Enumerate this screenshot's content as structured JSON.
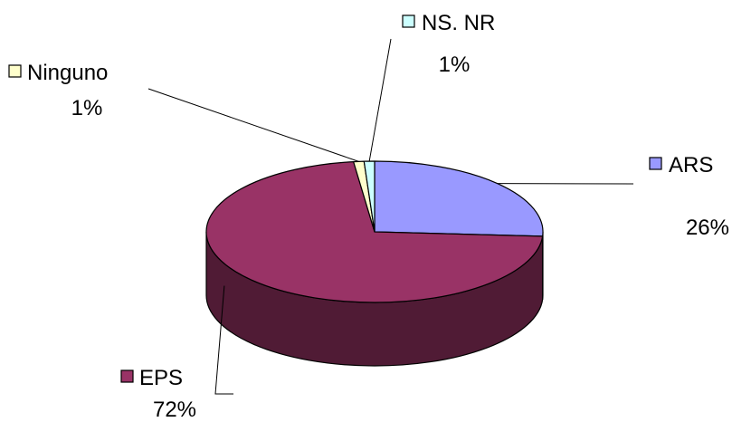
{
  "chart_data": {
    "type": "pie",
    "style": "3d",
    "legend": "inline labels with leader lines",
    "slices": [
      {
        "name": "ARS",
        "value": 26,
        "label": "26%",
        "color": "#9999FF"
      },
      {
        "name": "EPS",
        "value": 72,
        "label": "72%",
        "color": "#993366"
      },
      {
        "name": "Ninguno",
        "value": 1,
        "label": "1%",
        "color": "#FFFFCC"
      },
      {
        "name": "NS. NR",
        "value": 1,
        "label": "1%",
        "color": "#CCFFFF"
      }
    ]
  }
}
